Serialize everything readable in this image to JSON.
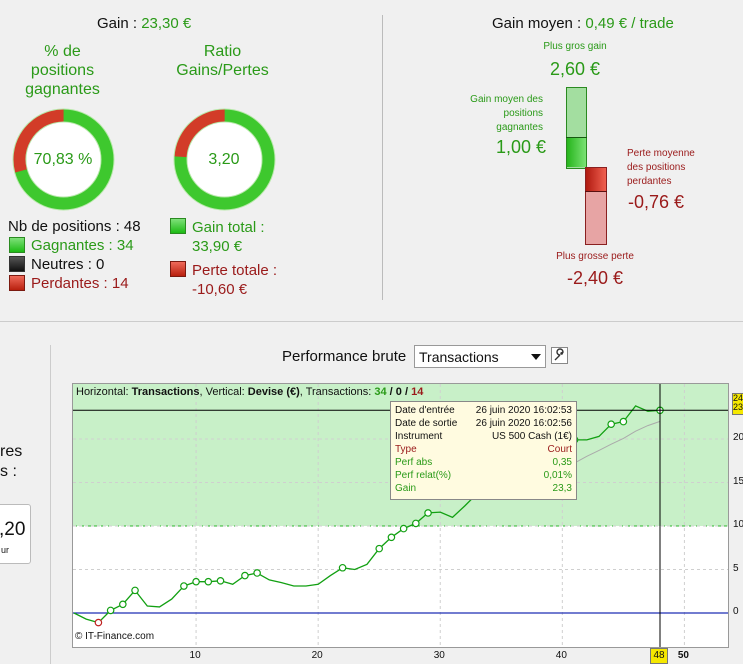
{
  "summary": {
    "gain_label": "Gain :",
    "gain_value": "23,30 €",
    "pct_title_1": "% de",
    "pct_title_2": "positions",
    "pct_title_3": "gagnantes",
    "pct_value": "70,83 %",
    "pct_fraction": 0.7083,
    "ratio_title_1": "Ratio",
    "ratio_title_2": "Gains/Pertes",
    "ratio_value": "3,20",
    "ratio_fraction": 0.76,
    "nb_positions": "Nb de positions : 48",
    "winners": "Gagnantes : 34",
    "neutral": "Neutres : 0",
    "losers": "Perdantes : 14",
    "gain_total_label": "Gain total :",
    "gain_total_value": "33,90 €",
    "loss_total_label": "Perte totale :",
    "loss_total_value": "-10,60 €"
  },
  "average": {
    "title": "Gain moyen :",
    "value": "0,49 € / trade",
    "best_gain_label": "Plus gros gain",
    "best_gain_value": "2,60 €",
    "avg_gain_label_1": "Gain moyen des",
    "avg_gain_label_2": "positions",
    "avg_gain_label_3": "gagnantes",
    "avg_gain_value": "1,00 €",
    "avg_loss_label_1": "Perte moyenne",
    "avg_loss_label_2": "des positions",
    "avg_loss_label_3": "perdantes",
    "avg_loss_value": "-0,76 €",
    "worst_loss_label": "Plus grosse perte",
    "worst_loss_value": "-2,40 €"
  },
  "left_partial": {
    "text1": "res",
    "text2": "s :",
    "value": ",20",
    "unit": "ur"
  },
  "performance": {
    "title": "Performance brute",
    "select_value": "Transactions",
    "header_prefix": "Horizontal: ",
    "header_h": "Transactions",
    "header_mid": ", Vertical: ",
    "header_v": "Devise (€)",
    "header_tx": ", Transactions: ",
    "tx_win": "34",
    "tx_sep1": " / ",
    "tx_neutral": "0",
    "tx_sep2": " / ",
    "tx_loss": "14",
    "copyright": "© IT-Finance.com",
    "cursor_x_label": "48",
    "cursor_y_label_1": "24",
    "cursor_y_label_2": "23"
  },
  "tooltip": {
    "entry_label": "Date d'entrée",
    "entry_value": "26 juin 2020 16:02:53",
    "exit_label": "Date de sortie",
    "exit_value": "26 juin 2020 16:02:56",
    "instr_label": "Instrument",
    "instr_value": "US 500 Cash (1€)",
    "type_label": "Type",
    "type_value": "Court",
    "perf_abs_label": "Perf abs",
    "perf_abs_value": "0,35",
    "perf_rel_label": "Perf relat(%)",
    "perf_rel_value": "0,01%",
    "gain_label": "Gain",
    "gain_value": "23,3"
  },
  "chart_data": {
    "type": "line",
    "title": "",
    "xlabel": "",
    "ylabel": "",
    "xlim": [
      -1,
      55
    ],
    "ylim": [
      -2,
      26
    ],
    "x_ticks": [
      10,
      20,
      30,
      40,
      50
    ],
    "y_ticks": [
      0,
      5,
      10,
      15,
      20
    ],
    "y_tick_labels": [
      "0",
      "5",
      "10",
      "15",
      "20"
    ],
    "reference_line": 10,
    "series": [
      {
        "values": [
          [
            0,
            0
          ],
          [
            1,
            -0.7
          ],
          [
            2,
            -1.1
          ],
          [
            3,
            0.3
          ],
          [
            4,
            1.0
          ],
          [
            5,
            2.6
          ],
          [
            6,
            0.8
          ],
          [
            7,
            0.7
          ],
          [
            8,
            1.6
          ],
          [
            9,
            3.1
          ],
          [
            10,
            3.6
          ],
          [
            11,
            3.6
          ],
          [
            12,
            3.7
          ],
          [
            13,
            3.3
          ],
          [
            14,
            4.3
          ],
          [
            15,
            4.6
          ],
          [
            16,
            3.8
          ],
          [
            17,
            3.5
          ],
          [
            18,
            3.1
          ],
          [
            19,
            3.1
          ],
          [
            20,
            3.3
          ],
          [
            21,
            4.3
          ],
          [
            22,
            5.2
          ],
          [
            23,
            5.0
          ],
          [
            24,
            5.6
          ],
          [
            25,
            7.4
          ],
          [
            26,
            8.7
          ],
          [
            27,
            9.7
          ],
          [
            28,
            10.3
          ],
          [
            29,
            11.5
          ],
          [
            30,
            11.6
          ],
          [
            31,
            11.0
          ],
          [
            32,
            12.3
          ],
          [
            33,
            13.7
          ],
          [
            34,
            14.0
          ],
          [
            35,
            14.5
          ],
          [
            36,
            15.6
          ],
          [
            37,
            16.7
          ],
          [
            38,
            17.3
          ],
          [
            39,
            18.0
          ],
          [
            40,
            18.7
          ],
          [
            41,
            19.9
          ],
          [
            42,
            19.9
          ],
          [
            43,
            20.3
          ],
          [
            44,
            21.7
          ],
          [
            45,
            22.0
          ],
          [
            46,
            23.8
          ],
          [
            47,
            23.2
          ],
          [
            48,
            23.3
          ]
        ]
      }
    ],
    "marker_indices": [
      2,
      3,
      4,
      5,
      9,
      10,
      11,
      12,
      14,
      15,
      22,
      25,
      26,
      27,
      28,
      29,
      33,
      35,
      36,
      38,
      41,
      44,
      45,
      48
    ]
  }
}
